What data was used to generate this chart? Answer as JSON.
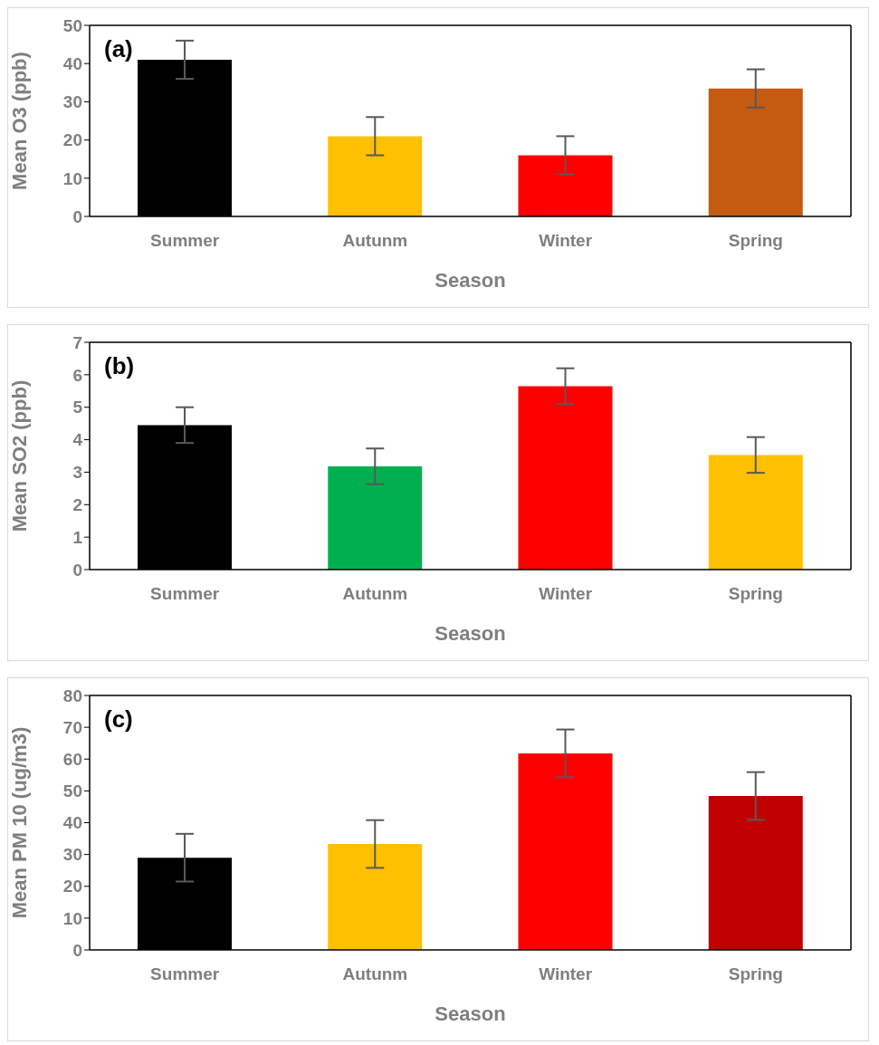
{
  "chart_data": [
    {
      "type": "bar",
      "xlabel": "Season",
      "ylabel": "Mean O3 (ppb)",
      "categories": [
        "Summer",
        "Autunm",
        "Winter",
        "Spring"
      ],
      "values": [
        41,
        21,
        16,
        33.5
      ],
      "errors": [
        5,
        5,
        5,
        5
      ],
      "colors": [
        "#000000",
        "#ffc000",
        "#ff0000",
        "#c55a11"
      ],
      "ylim": [
        0,
        50
      ],
      "yticks": [
        0,
        10,
        20,
        30,
        40,
        50
      ],
      "annotations": [
        "(a)"
      ]
    },
    {
      "type": "bar",
      "xlabel": "Season",
      "ylabel": "Mean SO2 (ppb)",
      "categories": [
        "Summer",
        "Autunm",
        "Winter",
        "Spring"
      ],
      "values": [
        4.45,
        3.18,
        5.65,
        3.53
      ],
      "errors": [
        0.55,
        0.55,
        0.55,
        0.55
      ],
      "colors": [
        "#000000",
        "#00b050",
        "#ff0000",
        "#ffc000"
      ],
      "ylim": [
        0,
        7
      ],
      "yticks": [
        0,
        1,
        2,
        3,
        4,
        5,
        6,
        7
      ],
      "annotations": [
        "(b)"
      ]
    },
    {
      "type": "bar",
      "xlabel": "Season",
      "ylabel": "Mean PM 10  (ug/m3)",
      "categories": [
        "Summer",
        "Autunm",
        "Winter",
        "Spring"
      ],
      "values": [
        29,
        33.3,
        61.8,
        48.4
      ],
      "errors": [
        7.5,
        7.5,
        7.5,
        7.5
      ],
      "colors": [
        "#000000",
        "#ffc000",
        "#ff0000",
        "#c00000"
      ],
      "ylim": [
        0,
        80
      ],
      "yticks": [
        0,
        10,
        20,
        30,
        40,
        50,
        60,
        70,
        80
      ],
      "annotations": [
        "(c)"
      ]
    }
  ]
}
